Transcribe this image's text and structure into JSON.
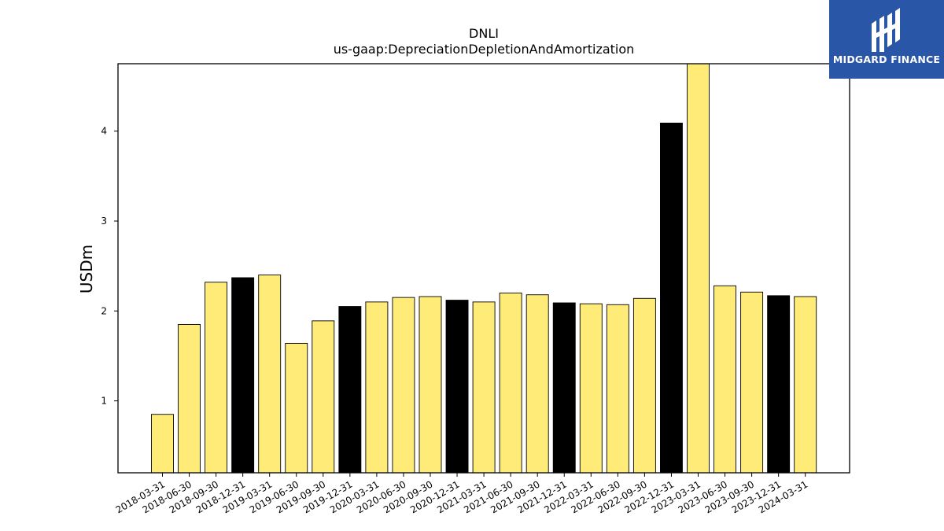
{
  "logo": {
    "text": "MIDGARD FINANCE"
  },
  "chart_data": {
    "type": "bar",
    "title": "DNLI",
    "subtitle": "us-gaap:DepreciationDepletionAndAmortization",
    "xlabel": "",
    "ylabel": "USDm",
    "ylim": [
      0.2,
      4.75
    ],
    "yticks": [
      1,
      2,
      3,
      4
    ],
    "categories": [
      "2018-03-31",
      "2018-06-30",
      "2018-09-30",
      "2018-12-31",
      "2019-03-31",
      "2019-06-30",
      "2019-09-30",
      "2019-12-31",
      "2020-03-31",
      "2020-06-30",
      "2020-09-30",
      "2020-12-31",
      "2021-03-31",
      "2021-06-30",
      "2021-09-30",
      "2021-12-31",
      "2022-03-31",
      "2022-06-30",
      "2022-09-30",
      "2022-12-31",
      "2023-03-31",
      "2023-06-30",
      "2023-09-30",
      "2023-12-31",
      "2024-03-31"
    ],
    "values": [
      0.85,
      1.85,
      2.32,
      2.37,
      2.4,
      1.64,
      1.89,
      2.05,
      2.1,
      2.15,
      2.16,
      2.12,
      2.1,
      2.2,
      2.18,
      2.09,
      2.08,
      2.07,
      2.14,
      4.09,
      4.75,
      2.28,
      2.21,
      2.17,
      2.16
    ],
    "colors": {
      "quarter": "#ffeb77",
      "year_end": "#000000",
      "edge": "#000000"
    },
    "grid": false,
    "legend": "none"
  }
}
